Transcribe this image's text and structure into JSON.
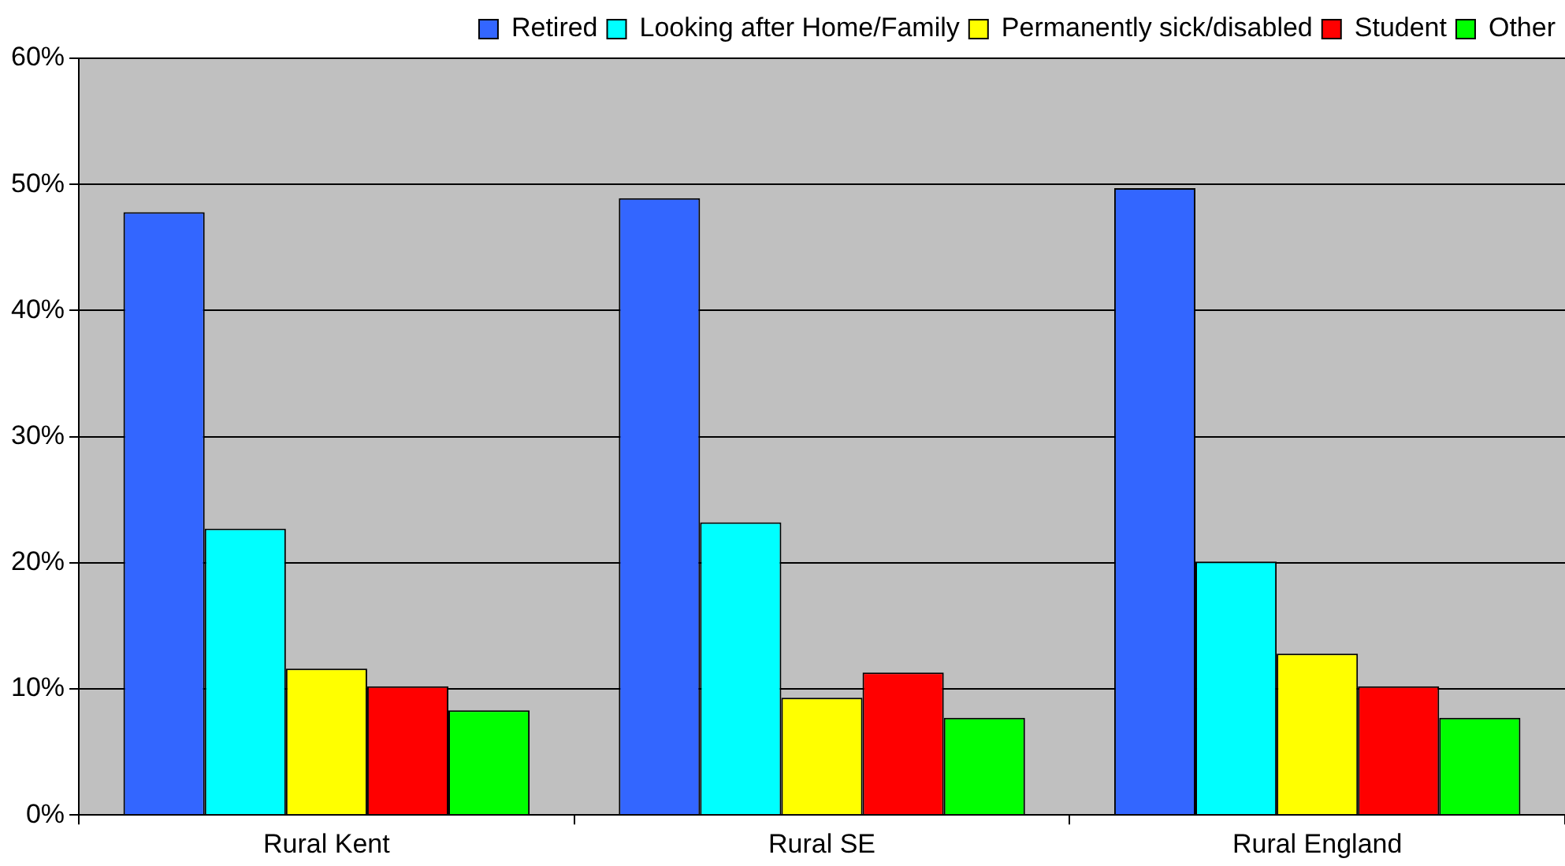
{
  "chart_data": {
    "type": "bar",
    "categories": [
      "Rural Kent",
      "Rural SE",
      "Rural England"
    ],
    "series": [
      {
        "name": "Retired",
        "color": "#3366ff",
        "values": [
          47.8,
          48.9,
          49.7
        ]
      },
      {
        "name": "Looking after Home/Family",
        "color": "#00ffff",
        "values": [
          22.7,
          23.2,
          20.1
        ]
      },
      {
        "name": "Permanently sick/disabled",
        "color": "#ffff00",
        "values": [
          11.6,
          9.3,
          12.8
        ]
      },
      {
        "name": "Student",
        "color": "#ff0000",
        "values": [
          10.2,
          11.3,
          10.2
        ]
      },
      {
        "name": "Other",
        "color": "#00ff00",
        "values": [
          8.3,
          7.7,
          7.7
        ]
      }
    ],
    "ylim": [
      0,
      60
    ],
    "yticks": [
      {
        "value": 0,
        "label": "0%"
      },
      {
        "value": 10,
        "label": "10%"
      },
      {
        "value": 20,
        "label": "20%"
      },
      {
        "value": 30,
        "label": "30%"
      },
      {
        "value": 40,
        "label": "40%"
      },
      {
        "value": 50,
        "label": "50%"
      },
      {
        "value": 60,
        "label": "60%"
      }
    ],
    "grid": "y",
    "legend": "top right"
  }
}
